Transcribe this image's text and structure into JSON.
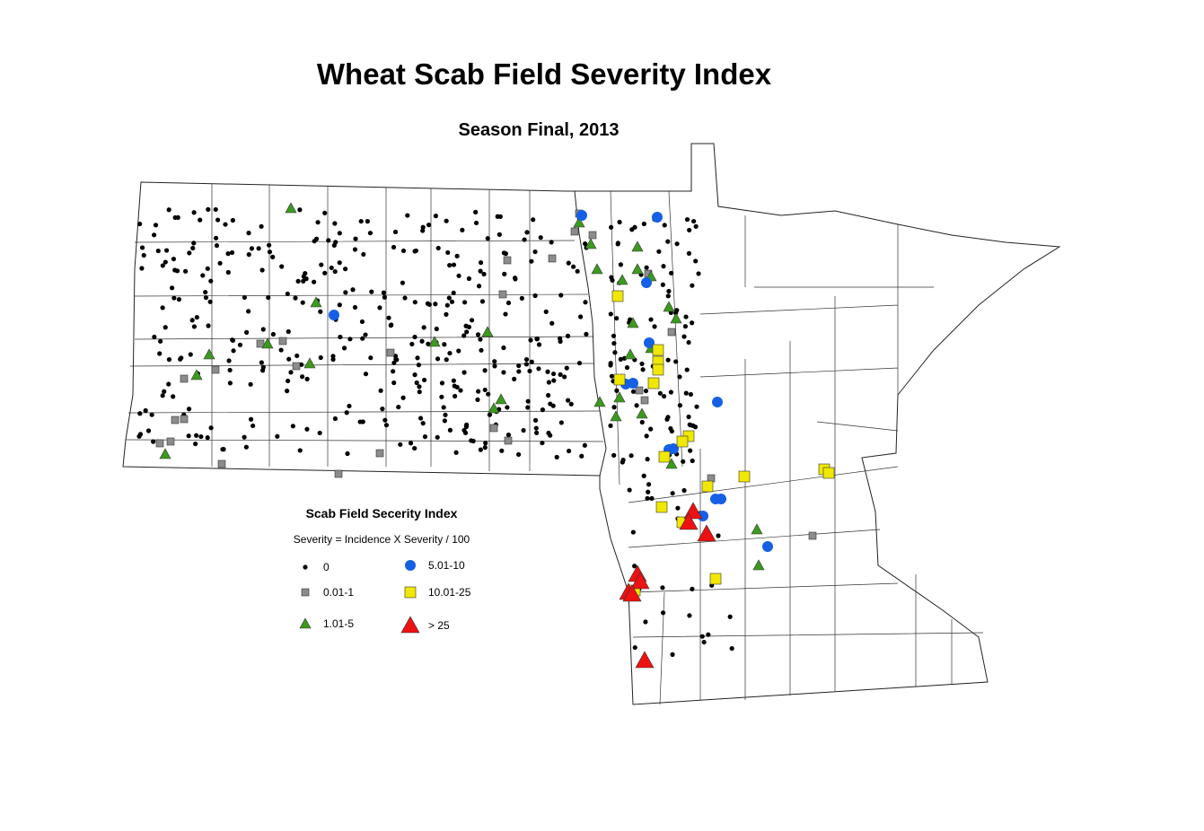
{
  "title": "Wheat Scab Field Severity Index",
  "subtitle": "Season Final, 2013",
  "legend": {
    "title": "Scab Field Secerity Index",
    "formula": "Severity = Incidence X Severity / 100",
    "items": [
      {
        "label": "0",
        "symbol": "dot",
        "color": "#000000"
      },
      {
        "label": "0.01-1",
        "symbol": "square",
        "color": "#8c8c8c"
      },
      {
        "label": "1.01-5",
        "symbol": "triangle",
        "color": "#3c9a1e"
      },
      {
        "label": "5.01-10",
        "symbol": "circle",
        "color": "#1560e6"
      },
      {
        "label": "10.01-25",
        "symbol": "square-large",
        "color": "#f0e800"
      },
      {
        "label": "> 25",
        "symbol": "triangle-large",
        "color": "#ee1111"
      }
    ]
  }
}
